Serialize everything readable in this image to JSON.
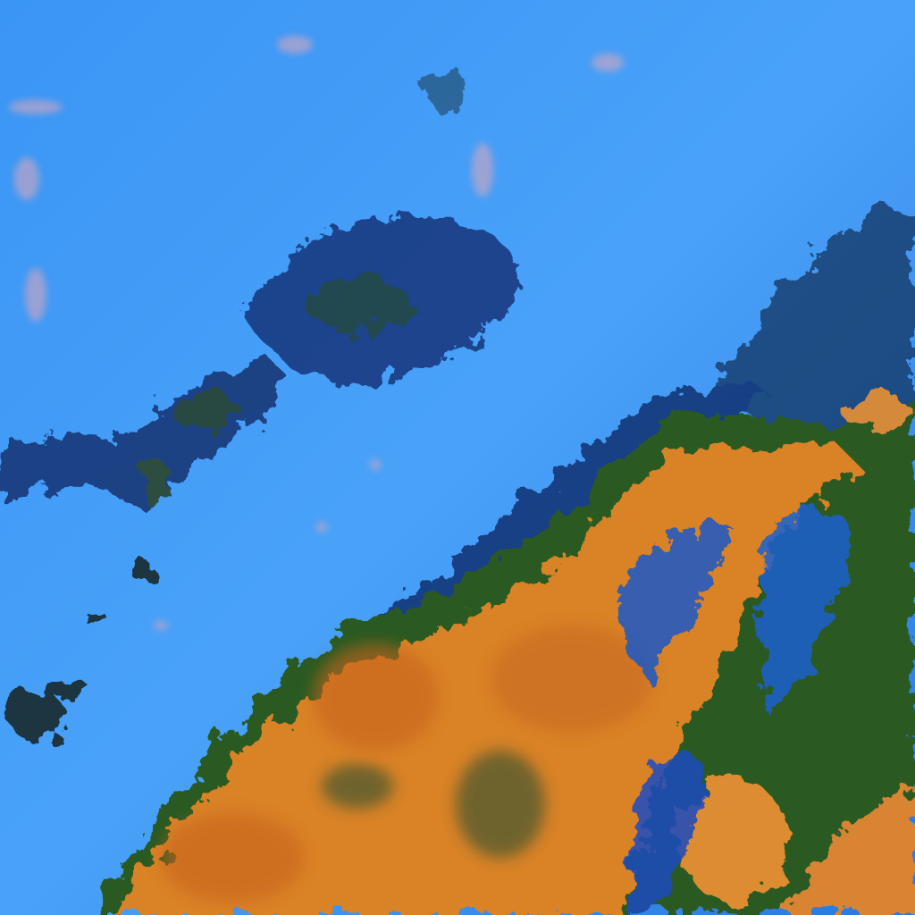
{
  "image": {
    "kind": "false-color satellite cloud imagery",
    "colors": {
      "clear_sky": "#2f8ff5",
      "thin_cloud": "#5aaaf8",
      "thick_cloud": "#e08a2a",
      "cloud_core": "#c8641c",
      "cloud_shadow": "#0a2a6a",
      "cloud_edge": "#2e5a20",
      "speckle": "#e0a0b0"
    }
  }
}
